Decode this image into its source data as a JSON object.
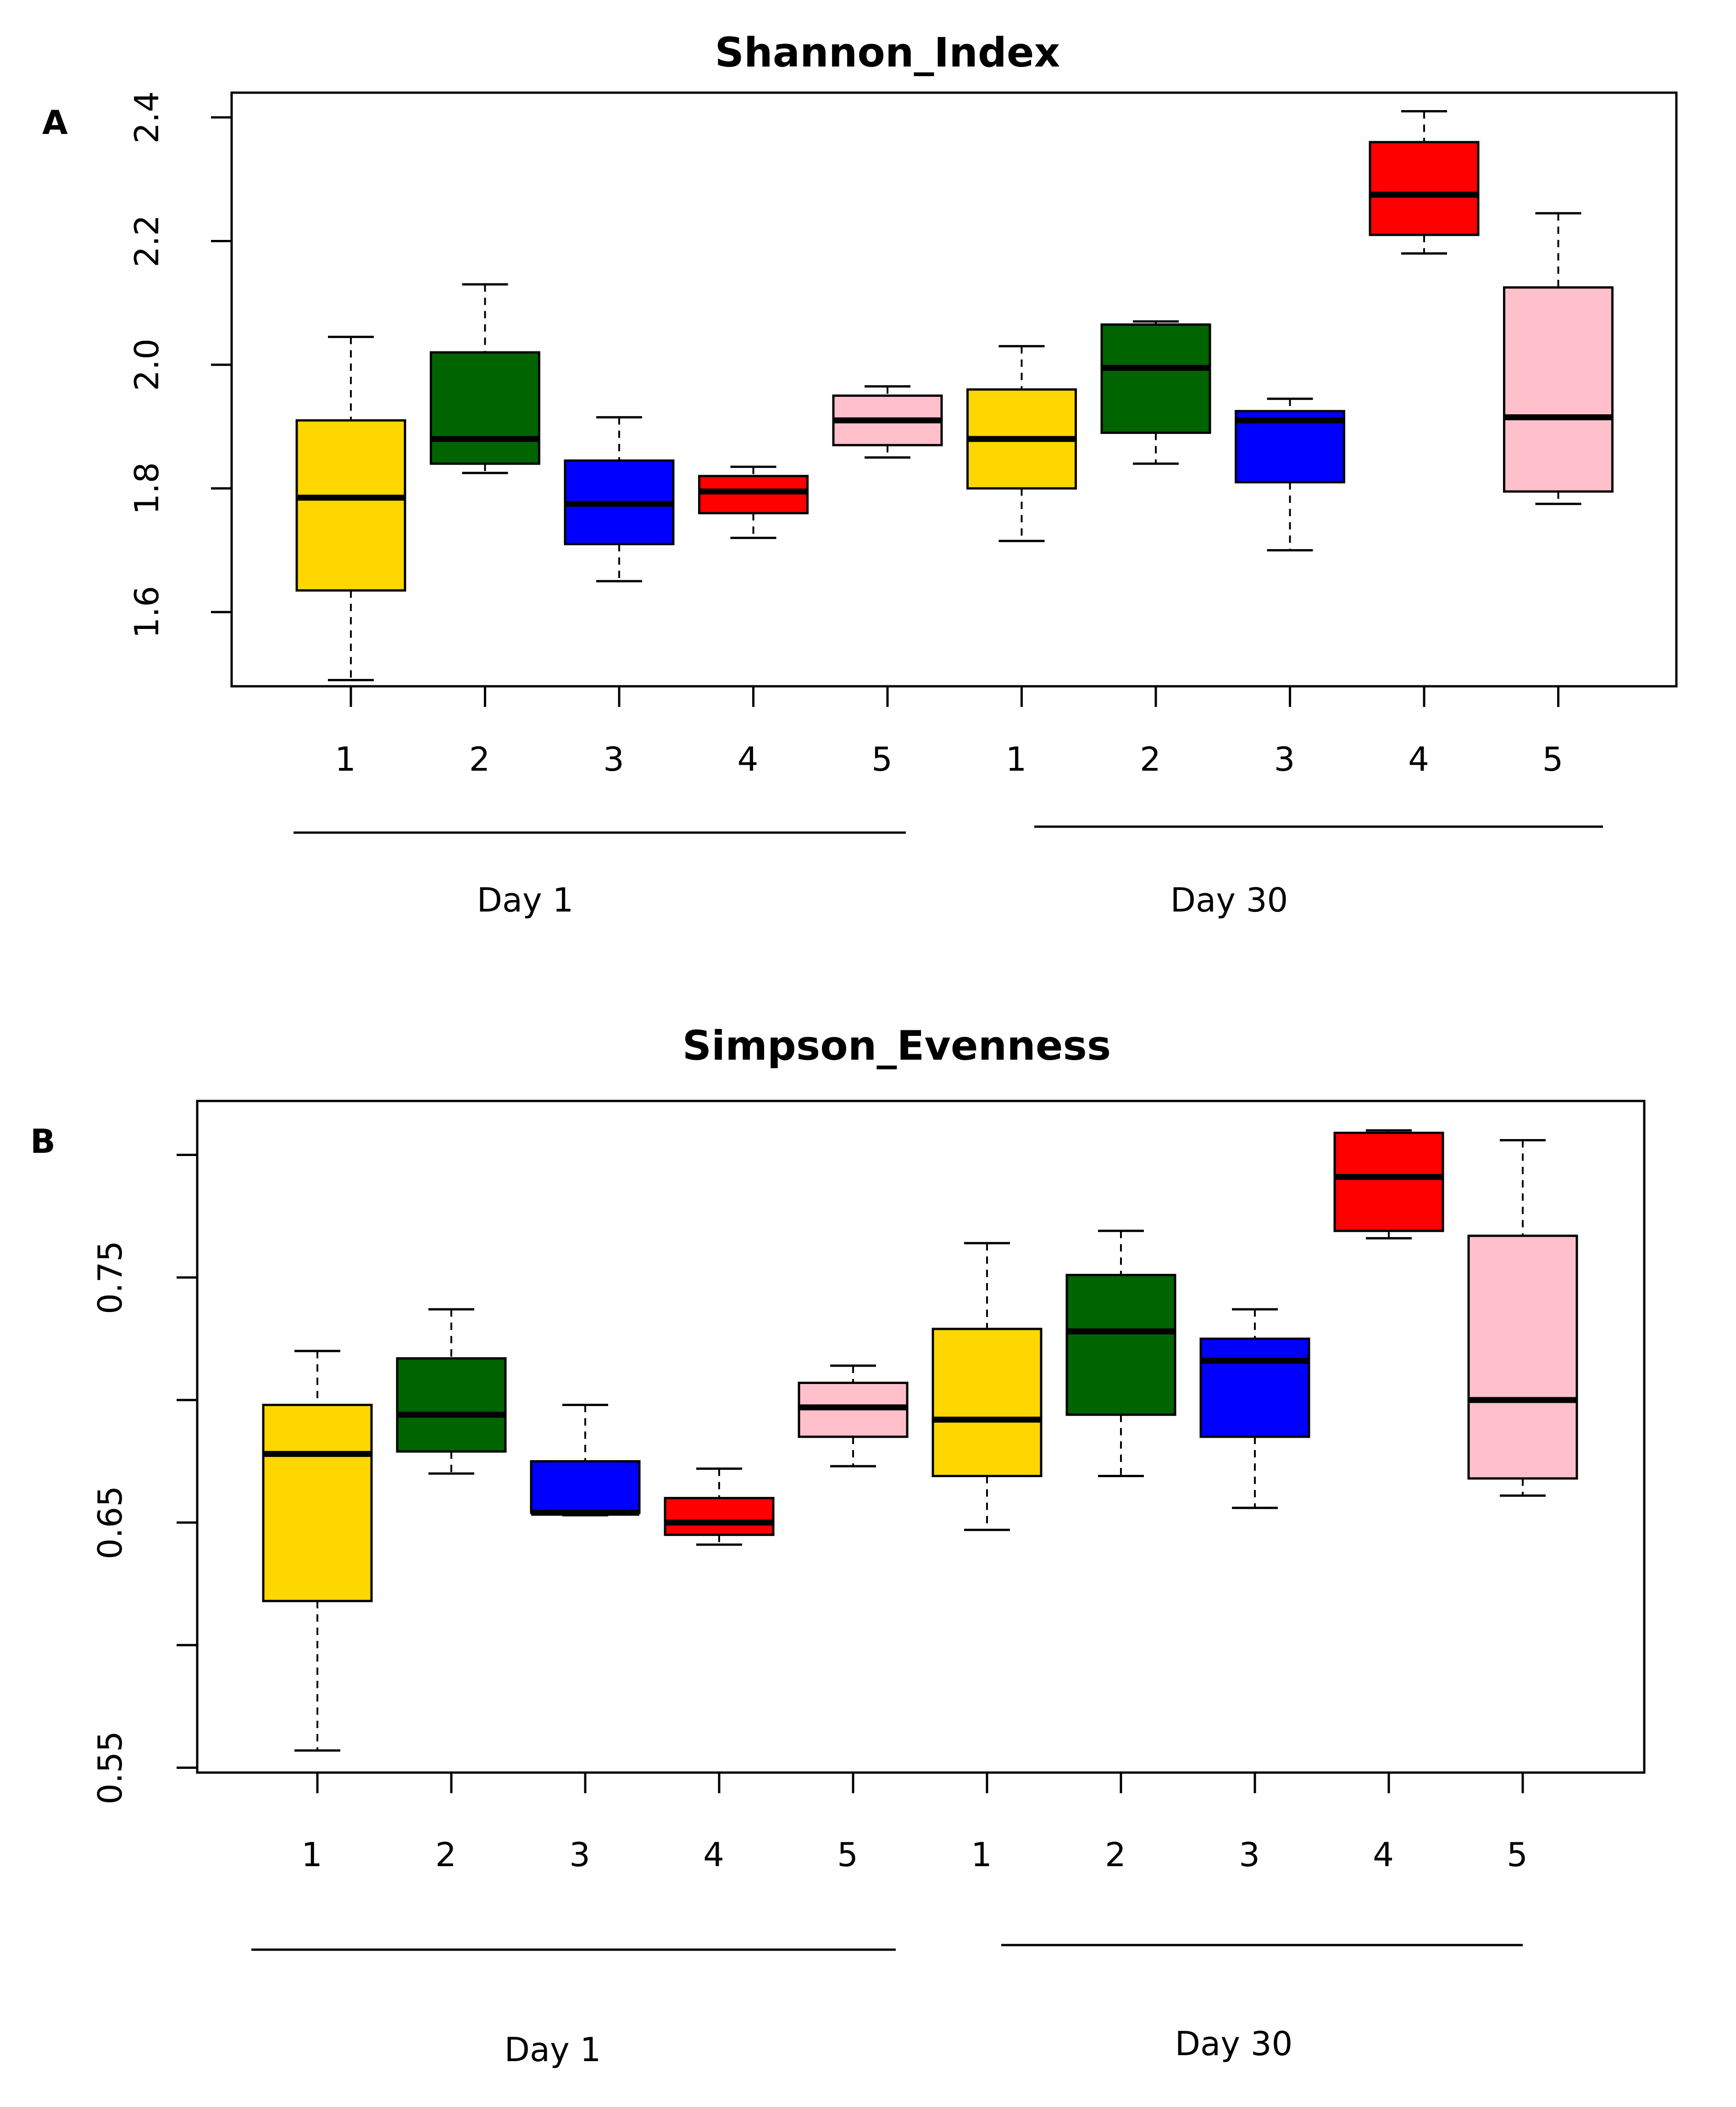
{
  "chart_data": [
    {
      "panel_label": "A",
      "type": "box",
      "title": "Shannon_Index",
      "xlabel": "",
      "ylabel": "",
      "ylim": [
        1.48,
        2.44
      ],
      "yticks": [
        1.6,
        1.8,
        2.0,
        2.2,
        2.4
      ],
      "ytick_labels": [
        "1.6",
        "1.8",
        "2.0",
        "2.2",
        "2.4"
      ],
      "grid": false,
      "legend": "none",
      "categories": [
        "1",
        "2",
        "3",
        "4",
        "5",
        "1",
        "2",
        "3",
        "4",
        "5"
      ],
      "groups": [
        {
          "label": "Day 1",
          "members": [
            0,
            1,
            2,
            3,
            4
          ]
        },
        {
          "label": "Day 30",
          "members": [
            5,
            6,
            7,
            8,
            9
          ]
        }
      ],
      "colors": [
        "#FFD700",
        "#006400",
        "#0000FF",
        "#FF0000",
        "#FFC0CB",
        "#FFD700",
        "#006400",
        "#0000FF",
        "#FF0000",
        "#FFC0CB"
      ],
      "boxes": [
        {
          "min": 1.49,
          "q1": 1.635,
          "median": 1.785,
          "q3": 1.91,
          "max": 2.045
        },
        {
          "min": 1.825,
          "q1": 1.84,
          "median": 1.88,
          "q3": 2.02,
          "max": 2.13
        },
        {
          "min": 1.65,
          "q1": 1.71,
          "median": 1.775,
          "q3": 1.845,
          "max": 1.915
        },
        {
          "min": 1.72,
          "q1": 1.76,
          "median": 1.795,
          "q3": 1.82,
          "max": 1.835
        },
        {
          "min": 1.85,
          "q1": 1.87,
          "median": 1.91,
          "q3": 1.95,
          "max": 1.965
        },
        {
          "min": 1.715,
          "q1": 1.8,
          "median": 1.88,
          "q3": 1.96,
          "max": 2.03
        },
        {
          "min": 1.84,
          "q1": 1.89,
          "median": 1.995,
          "q3": 2.065,
          "max": 2.07
        },
        {
          "min": 1.7,
          "q1": 1.81,
          "median": 1.91,
          "q3": 1.925,
          "max": 1.945
        },
        {
          "min": 2.18,
          "q1": 2.21,
          "median": 2.275,
          "q3": 2.36,
          "max": 2.41
        },
        {
          "min": 1.775,
          "q1": 1.795,
          "median": 1.915,
          "q3": 2.125,
          "max": 2.245
        }
      ]
    },
    {
      "panel_label": "B",
      "type": "box",
      "title": "Simpson_Evenness",
      "xlabel": "",
      "ylabel": "",
      "ylim": [
        0.548,
        0.822
      ],
      "yticks": [
        0.55,
        0.6,
        0.65,
        0.7,
        0.75,
        0.8
      ],
      "ytick_labels": [
        "0.55",
        "",
        "0.65",
        "",
        "0.75",
        ""
      ],
      "grid": false,
      "legend": "none",
      "categories": [
        "1",
        "2",
        "3",
        "4",
        "5",
        "1",
        "2",
        "3",
        "4",
        "5"
      ],
      "groups": [
        {
          "label": "Day 1",
          "members": [
            0,
            1,
            2,
            3,
            4
          ]
        },
        {
          "label": "Day 30",
          "members": [
            5,
            6,
            7,
            8,
            9
          ]
        }
      ],
      "colors": [
        "#FFD700",
        "#006400",
        "#0000FF",
        "#FF0000",
        "#FFC0CB",
        "#FFD700",
        "#006400",
        "#0000FF",
        "#FF0000",
        "#FFC0CB"
      ],
      "boxes": [
        {
          "min": 0.557,
          "q1": 0.618,
          "median": 0.678,
          "q3": 0.698,
          "max": 0.72
        },
        {
          "min": 0.67,
          "q1": 0.679,
          "median": 0.694,
          "q3": 0.717,
          "max": 0.737
        },
        {
          "min": 0.653,
          "q1": 0.654,
          "median": 0.654,
          "q3": 0.675,
          "max": 0.698
        },
        {
          "min": 0.641,
          "q1": 0.645,
          "median": 0.65,
          "q3": 0.66,
          "max": 0.672
        },
        {
          "min": 0.673,
          "q1": 0.685,
          "median": 0.697,
          "q3": 0.707,
          "max": 0.714
        },
        {
          "min": 0.647,
          "q1": 0.669,
          "median": 0.692,
          "q3": 0.729,
          "max": 0.764
        },
        {
          "min": 0.669,
          "q1": 0.694,
          "median": 0.728,
          "q3": 0.751,
          "max": 0.769
        },
        {
          "min": 0.656,
          "q1": 0.685,
          "median": 0.716,
          "q3": 0.725,
          "max": 0.737
        },
        {
          "min": 0.766,
          "q1": 0.769,
          "median": 0.791,
          "q3": 0.809,
          "max": 0.81
        },
        {
          "min": 0.661,
          "q1": 0.668,
          "median": 0.7,
          "q3": 0.767,
          "max": 0.806
        }
      ]
    }
  ]
}
